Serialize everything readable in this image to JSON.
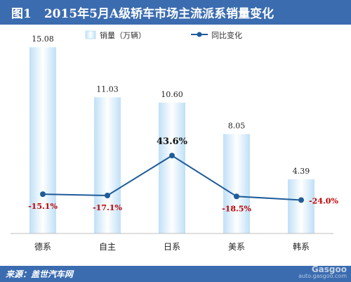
{
  "header": {
    "figure_label": "图1",
    "title": "2015年5月A级轿车市场主流派系销量变化"
  },
  "footer": {
    "source": "来源：盖世汽车网",
    "watermark_top": "Gasgoo",
    "watermark_bottom": "auto.gasgoo.com"
  },
  "colors": {
    "header_bg": "#3b6cb0",
    "bar_edge": "#bfe0f7",
    "bar_center": "#ffffff",
    "line": "#1f5c99",
    "pct_label": "#c00000"
  },
  "chart_data": {
    "type": "bar+line",
    "categories": [
      "德系",
      "自主",
      "日系",
      "美系",
      "韩系"
    ],
    "series": [
      {
        "name": "销量（万辆）",
        "type": "bar",
        "values": [
          15.08,
          11.03,
          10.6,
          8.05,
          4.39
        ],
        "labels": [
          "15.08",
          "11.03",
          "10.60",
          "8.05",
          "4.39"
        ]
      },
      {
        "name": "同比变化",
        "type": "line",
        "values": [
          -15.1,
          -17.1,
          43.6,
          -18.5,
          -24.0
        ],
        "labels": [
          "-15.1%",
          "-17.1%",
          "43.6%",
          "-18.5%",
          "-24.0%"
        ]
      }
    ],
    "legend_position": "top",
    "grid": false
  }
}
